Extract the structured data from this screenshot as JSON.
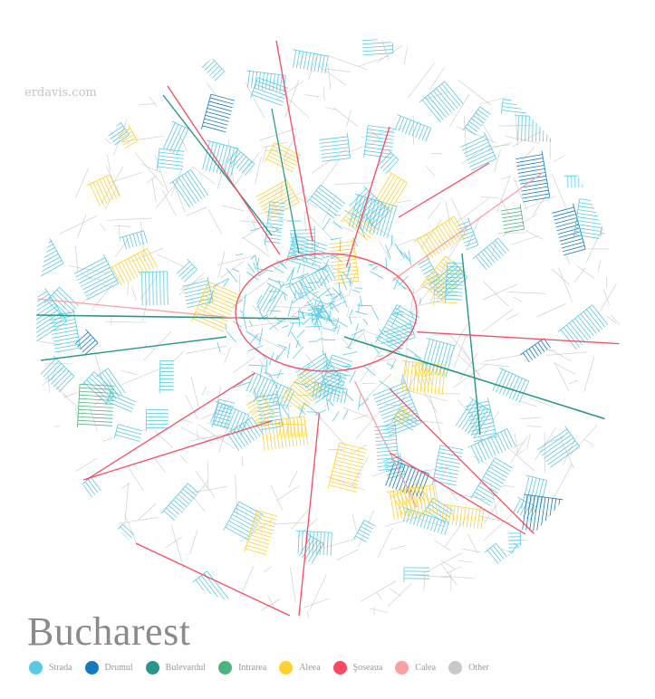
{
  "credit": "erdavis.com",
  "title": "Bucharest",
  "legend": [
    {
      "label": "Strada",
      "color": "#5bc8e4"
    },
    {
      "label": "Drumul",
      "color": "#1679bd"
    },
    {
      "label": "Bulevardul",
      "color": "#2a9688"
    },
    {
      "label": "Intrarea",
      "color": "#4db37e"
    },
    {
      "label": "Aleea",
      "color": "#fdd12f"
    },
    {
      "label": "Şoseaua",
      "color": "#f94a61"
    },
    {
      "label": "Calea",
      "color": "#f9a0a5"
    },
    {
      "label": "Other",
      "color": "#c8c8c8"
    }
  ]
}
